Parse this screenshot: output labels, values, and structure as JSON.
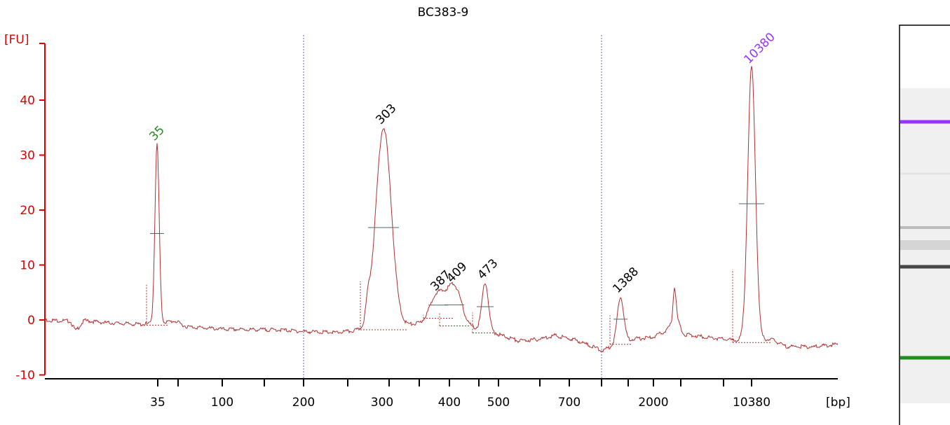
{
  "chart_data": {
    "type": "line",
    "title": "BC383-9",
    "ylabel": "[FU]",
    "xlabel": "[bp]",
    "ylim": [
      -10,
      45
    ],
    "yticks": [
      -10,
      0,
      10,
      20,
      30,
      40
    ],
    "xticks": [
      "35",
      "100",
      "200",
      "300",
      "400",
      "500",
      "700",
      "2000",
      "10380"
    ],
    "colors": {
      "trace": "#b03030",
      "axis_y": "#dd0000",
      "axis_x": "#000000",
      "marker": "#228b22",
      "upper_marker": "#9933ff",
      "peak": "#000000",
      "separator": "#6a6ad8"
    },
    "peaks": [
      {
        "label": "35",
        "value": 32,
        "role": "lower-marker"
      },
      {
        "label": "303",
        "value": 35,
        "role": "peak"
      },
      {
        "label": "387",
        "value": 4.7,
        "role": "peak"
      },
      {
        "label": "409",
        "value": 6.2,
        "role": "peak"
      },
      {
        "label": "473",
        "value": 6.8,
        "role": "peak"
      },
      {
        "label": "1388",
        "value": 4.3,
        "role": "peak"
      },
      {
        "label": "10380",
        "value": 46,
        "role": "upper-marker"
      }
    ],
    "gel_lane": {
      "bands": [
        {
          "name": "upper-marker-band",
          "color": "#9933ff",
          "intensity": 1.0
        },
        {
          "name": "band",
          "color": "#bbbbbb",
          "intensity": 0.2
        },
        {
          "name": "band",
          "color": "#888888",
          "intensity": 0.5
        },
        {
          "name": "band",
          "color": "#999999",
          "intensity": 0.3
        },
        {
          "name": "band",
          "color": "#333333",
          "intensity": 0.9
        },
        {
          "name": "lower-marker-band",
          "color": "#228b22",
          "intensity": 1.0
        }
      ]
    }
  }
}
